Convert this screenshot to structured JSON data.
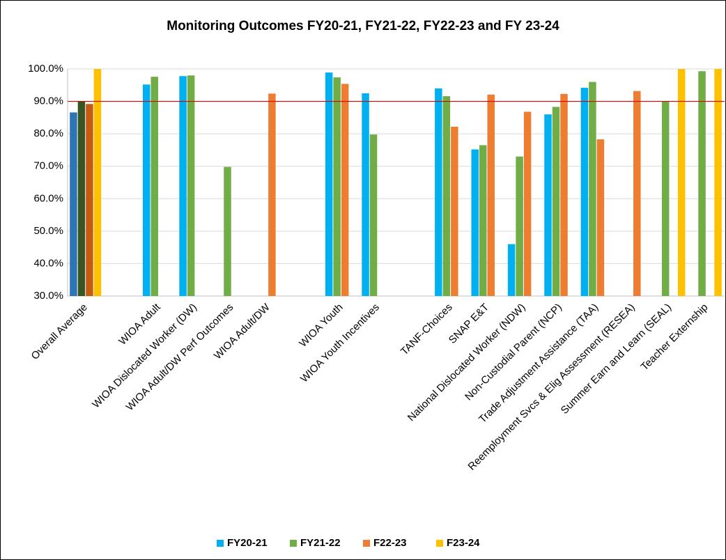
{
  "chart_data": {
    "type": "bar",
    "title": "Monitoring Outcomes FY20-21, FY21-22, FY22-23 and FY 23-24",
    "categories": [
      "Overall Average",
      null,
      "WIOA Adult",
      "WIOA Dislocated Worker (DW)",
      "WIOA Adult/DW Perf Outcomes",
      "WIOA Adult/DW",
      null,
      "WIOA Youth",
      "WIOA Youth Incentives",
      null,
      "TANF-Choices",
      "SNAP E&T",
      "National Dislocated Worker (NDW)",
      "Non-Custodial Parent (NCP)",
      "Trade Adjustment Assistance (TAA)",
      "Reemployment Svcs & Elig Assessment (RESEA)",
      "Summer Earn and Learn (SEAL)",
      "Teacher Externship"
    ],
    "series": [
      {
        "name": "FY20-21",
        "color": "#00b0f0",
        "point_colors": {
          "0": "#2e75b6"
        },
        "values": [
          86.6,
          null,
          95.2,
          97.8,
          null,
          null,
          null,
          98.9,
          92.5,
          null,
          94.0,
          75.2,
          46.0,
          86.0,
          94.2,
          null,
          null,
          null
        ]
      },
      {
        "name": "FY21-22",
        "color": "#70ad47",
        "point_colors": {
          "0": "#375623"
        },
        "values": [
          90.0,
          null,
          97.6,
          98.0,
          69.8,
          null,
          null,
          97.4,
          79.8,
          null,
          91.6,
          76.5,
          73.0,
          88.3,
          96.0,
          null,
          90.0,
          99.3
        ]
      },
      {
        "name": "F22-23",
        "color": "#ed7d31",
        "point_colors": {
          "0": "#c55a11"
        },
        "values": [
          89.2,
          null,
          null,
          null,
          null,
          92.4,
          null,
          95.4,
          null,
          null,
          82.2,
          92.1,
          86.8,
          92.3,
          78.3,
          93.2,
          null,
          null
        ]
      },
      {
        "name": "F23-24",
        "color": "#ffc000",
        "point_colors": {},
        "values": [
          100,
          null,
          null,
          null,
          null,
          null,
          null,
          null,
          null,
          null,
          null,
          null,
          null,
          null,
          null,
          null,
          100,
          100
        ]
      }
    ],
    "target": 90,
    "target_color": "#e00000",
    "ylim": [
      30,
      100
    ],
    "yticks": [
      {
        "value": 30,
        "label": "30.0%"
      },
      {
        "value": 40,
        "label": "40.0%"
      },
      {
        "value": 50,
        "label": "50.0%"
      },
      {
        "value": 60,
        "label": "60.0%"
      },
      {
        "value": 70,
        "label": "70.0%"
      },
      {
        "value": 80,
        "label": "80.0%"
      },
      {
        "value": 90,
        "label": "90.0%"
      },
      {
        "value": 100,
        "label": "100.0%"
      }
    ],
    "grid": true,
    "legend": "bottom"
  }
}
